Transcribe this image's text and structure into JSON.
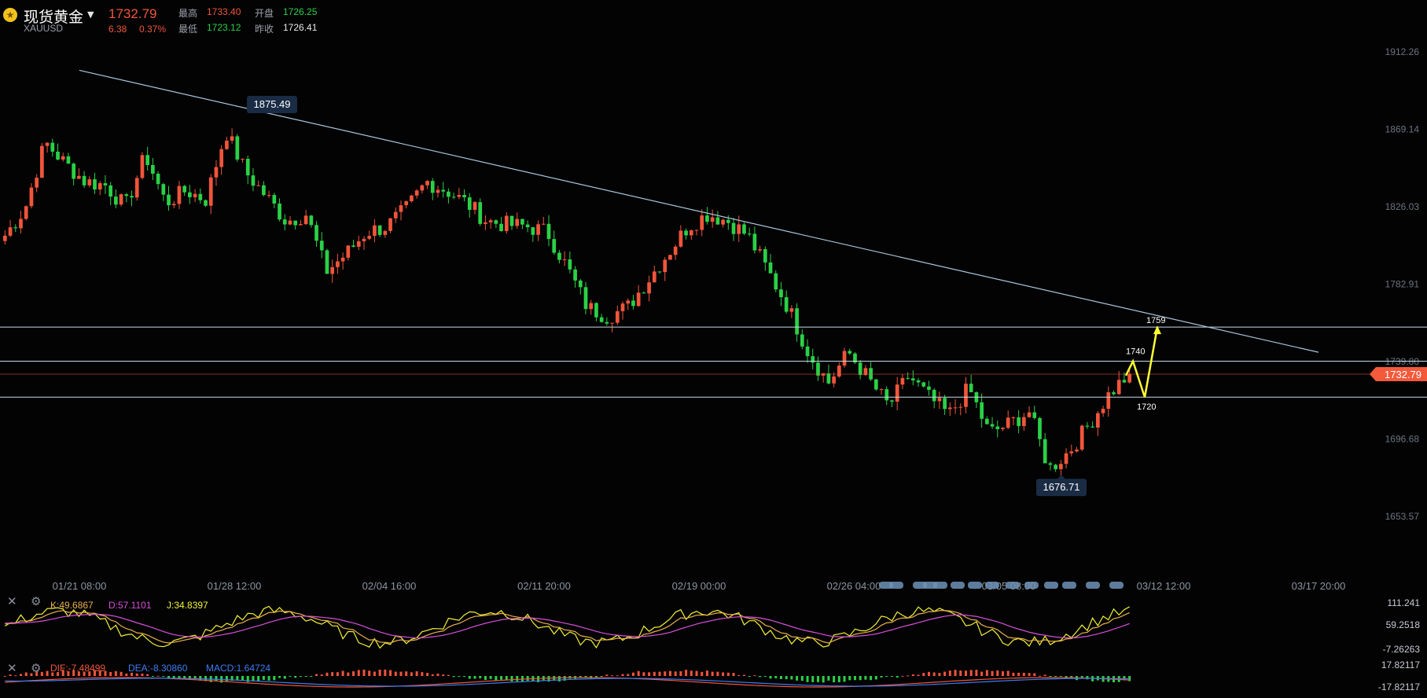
{
  "header": {
    "name": "现货黄金",
    "code": "XAUUSD",
    "last": "1732.79",
    "change": "6.38",
    "change_pct": "0.37%",
    "high_label": "最高",
    "high": "1733.40",
    "open_label": "开盘",
    "open": "1726.25",
    "low_label": "最低",
    "low": "1723.12",
    "prev_label": "昨收",
    "prev": "1726.41"
  },
  "colors": {
    "up": "#f0553a",
    "down": "#2ad146",
    "trendline": "#a9c6da",
    "hline": "#c8dbe8",
    "price_line": "#f0553a",
    "forecast": "#ffff33",
    "k": "#e8b04a",
    "d": "#d84fd9",
    "j": "#f2f234",
    "dif": "#f0553a",
    "dea": "#3d7cf0",
    "macd_up": "#f0553a",
    "macd_down": "#2ad146"
  },
  "chart_data": {
    "type": "candlestick",
    "x_labels": [
      "01/21 08:00",
      "01/28 12:00",
      "02/04 16:00",
      "02/11 20:00",
      "02/19 00:00",
      "02/26 04:00",
      "03/05 08:00",
      "03/12 12:00",
      "03/17 20:00"
    ],
    "y_ticks": [
      "1912.26",
      "1869.14",
      "1826.03",
      "1782.91",
      "1739.80",
      "1696.68",
      "1653.57"
    ],
    "ylim": [
      1653.57,
      1912.26
    ],
    "current_price": "1732.79",
    "annotations": {
      "high": "1875.49",
      "low": "1676.71"
    },
    "horizontal_lines": [
      1759,
      1740,
      1720
    ],
    "trendline": [
      {
        "x": "01/21 08:00",
        "y": 1902
      },
      {
        "x": "03/17 20:00",
        "y": 1745
      }
    ],
    "forecast": {
      "points": [
        "1740",
        "1720",
        "1759"
      ]
    },
    "series_waypoints": [
      1810,
      1825,
      1862,
      1850,
      1840,
      1838,
      1826,
      1855,
      1828,
      1835,
      1830,
      1868,
      1845,
      1832,
      1818,
      1822,
      1790,
      1800,
      1812,
      1815,
      1825,
      1840,
      1835,
      1828,
      1818,
      1816,
      1815,
      1812,
      1792,
      1770,
      1765,
      1770,
      1785,
      1800,
      1815,
      1822,
      1818,
      1810,
      1790,
      1770,
      1745,
      1728,
      1745,
      1730,
      1715,
      1732,
      1720,
      1710,
      1725,
      1700,
      1705,
      1712,
      1680,
      1690,
      1705,
      1722,
      1733
    ],
    "kdj": {
      "k": "K:49.6867",
      "d": "D:57.1101",
      "j": "J:34.8397",
      "ticks": [
        "111.241",
        "59.2518",
        "-7.26263"
      ]
    },
    "macd": {
      "dif": "DIF:-7.48499",
      "dea": "DEA:-8.30860",
      "macd": "MACD:1.64724",
      "ticks": [
        "17.82117",
        "-17.82117"
      ]
    }
  }
}
